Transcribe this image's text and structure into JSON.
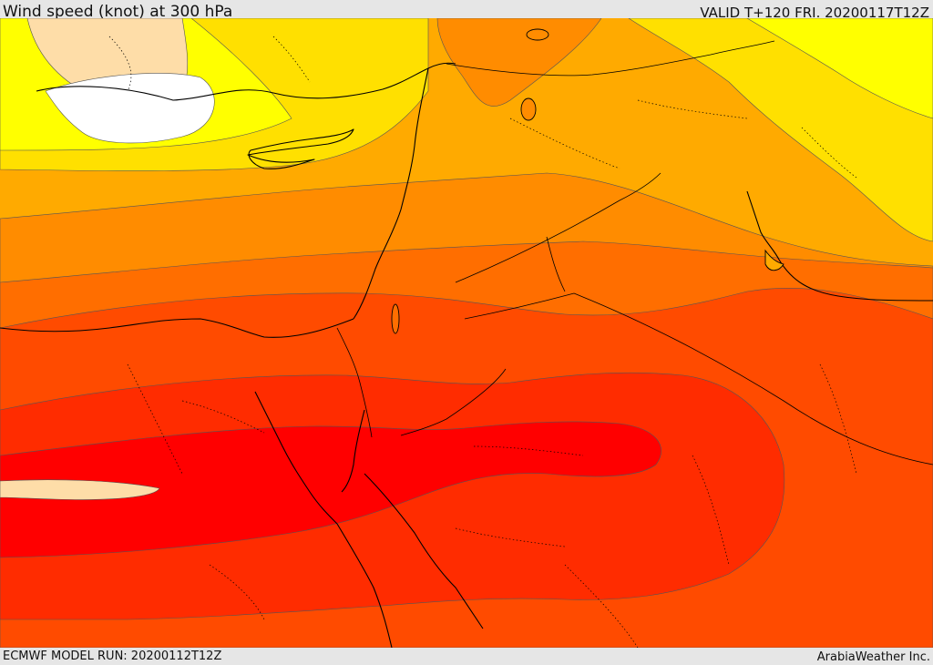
{
  "header": {
    "title": "Wind speed (knot) at 300 hPa",
    "valid": "VALID T+120 FRI. 20200117T12Z"
  },
  "footer": {
    "model_run": "ECMWF MODEL RUN: 20200112T12Z",
    "credit": "ArabiaWeather Inc."
  },
  "colors": {
    "white": "#ffffff",
    "peach": "#fedda8",
    "yellow_light": "#ffff00",
    "yellow": "#ffe000",
    "gold": "#ffc200",
    "amber": "#ffaa00",
    "orange": "#ff8c00",
    "dark_orange": "#ff6e00",
    "red_orange": "#ff4b00",
    "orange_red": "#ff2c00",
    "red": "#ff0000"
  }
}
